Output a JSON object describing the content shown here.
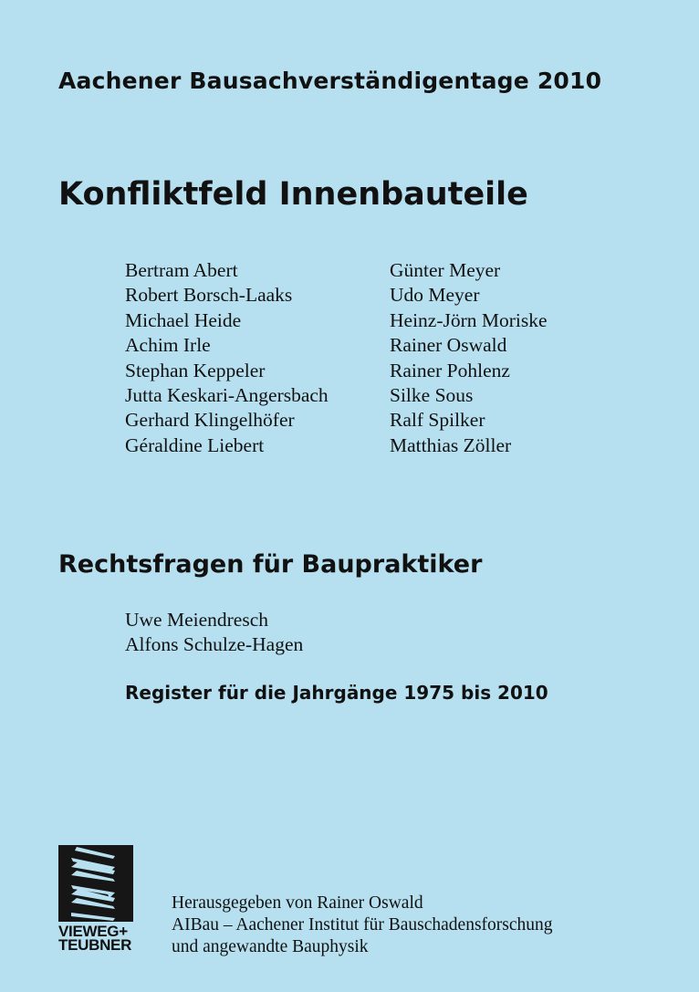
{
  "series_title": "Aachener Bausachverständigentage 2010",
  "main_title": "Konfliktfeld Innenbauteile",
  "authors_left": [
    "Bertram Abert",
    "Robert Borsch-Laaks",
    "Michael Heide",
    "Achim Irle",
    "Stephan Keppeler",
    "Jutta Keskari-Angersbach",
    "Gerhard Klingelhöfer",
    "Géraldine Liebert"
  ],
  "authors_right": [
    "Günter Meyer",
    "Udo Meyer",
    "Heinz-Jörn Moriske",
    "Rainer Oswald",
    "Rainer Pohlenz",
    "Silke Sous",
    "Ralf Spilker",
    "Matthias Zöller"
  ],
  "subtitle": "Rechtsfragen für Baupraktiker",
  "sub_authors": [
    "Uwe Meiendresch",
    "Alfons Schulze-Hagen"
  ],
  "register": "Register für die Jahrgänge 1975 bis 2010",
  "publisher_logo": {
    "line1": "VIEWEG+",
    "line2": "TEUBNER"
  },
  "footer": [
    "Herausgegeben von Rainer Oswald",
    "AIBau – Aachener Institut für Bauschadensforschung",
    "und angewandte Bauphysik"
  ],
  "colors": {
    "background": "#b6e0f0",
    "text": "#111111",
    "logo": "#161616"
  }
}
